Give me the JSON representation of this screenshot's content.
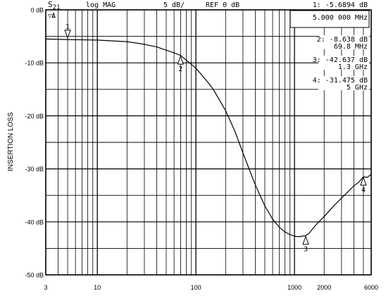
{
  "header": {
    "channel": "S",
    "channel_sub": "21",
    "format": "log MAG",
    "scale": "5 dB/",
    "reference": "REF 0 dB",
    "corner_label": "▽Δ"
  },
  "marker_readouts": [
    {
      "id": "1",
      "line1": "1: -5.6894 dB",
      "line2": "5.000 000 MHz"
    },
    {
      "id": "2",
      "line1": "2: -8.638  dB",
      "line2": "69.8 MHz"
    },
    {
      "id": "3",
      "line1": "3: -42.637 dB",
      "line2": "1.3 GHz"
    },
    {
      "id": "4",
      "line1": "4: -31.475 dB",
      "line2": "5 GHz"
    }
  ],
  "chart_data": {
    "type": "line",
    "xscale": "log",
    "xlim": [
      3,
      6000
    ],
    "ylim": [
      -50,
      0
    ],
    "ylabel": "INSERTION LOSS",
    "xlabel": "",
    "grid": true,
    "x_ticks": [
      {
        "value": 3,
        "label": "3"
      },
      {
        "value": 10,
        "label": "10"
      },
      {
        "value": 100,
        "label": "100"
      },
      {
        "value": 1000,
        "label": "1000"
      },
      {
        "value": 2000,
        "label": "2000"
      },
      {
        "value": 6000,
        "label": "6000"
      }
    ],
    "y_ticks": [
      {
        "value": 0,
        "label": "0 dB"
      },
      {
        "value": -10,
        "label": "-10 dB"
      },
      {
        "value": -20,
        "label": "-20 dB"
      },
      {
        "value": -30,
        "label": "-30 dB"
      },
      {
        "value": -40,
        "label": "-40 dB"
      },
      {
        "value": -50,
        "label": "-50 dB"
      }
    ],
    "series": [
      {
        "x": [
          3,
          5,
          10,
          20,
          30,
          40,
          50,
          60,
          70,
          80,
          100,
          130,
          150,
          200,
          250,
          300,
          400,
          500,
          600,
          700,
          800,
          900,
          1000,
          1100,
          1200,
          1300,
          1400,
          1500,
          1700,
          2000,
          2500,
          3000,
          3500,
          4000,
          4500,
          5000,
          5500,
          6000
        ],
        "y": [
          -5.5,
          -5.6,
          -5.7,
          -6.0,
          -6.5,
          -7.0,
          -7.6,
          -8.1,
          -8.6,
          -9.5,
          -11.0,
          -13.5,
          -15.0,
          -19.0,
          -23.0,
          -27.0,
          -33.0,
          -37.0,
          -39.5,
          -41.0,
          -41.9,
          -42.4,
          -42.7,
          -42.8,
          -42.7,
          -42.6,
          -42.2,
          -41.5,
          -40.3,
          -39.0,
          -37.0,
          -35.5,
          -34.3,
          -33.2,
          -32.5,
          -31.5,
          -31.6,
          -31.0
        ]
      }
    ],
    "markers": [
      {
        "label": "1",
        "x": 5,
        "y": -5.6894
      },
      {
        "label": "2",
        "x": 69.8,
        "y": -8.638
      },
      {
        "label": "3",
        "x": 1300,
        "y": -42.637
      },
      {
        "label": "4",
        "x": 5000,
        "y": -31.475
      }
    ]
  }
}
